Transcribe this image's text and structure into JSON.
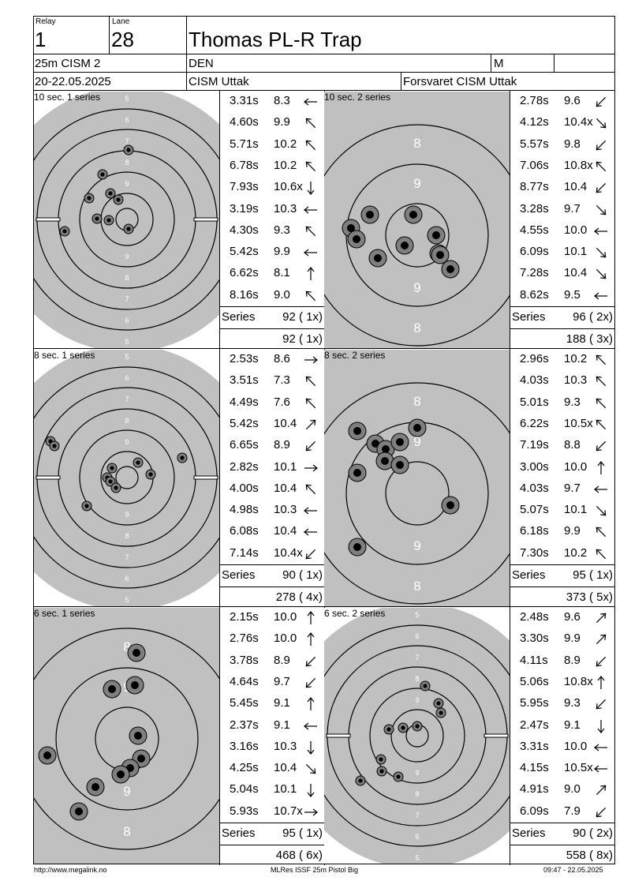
{
  "header": {
    "relay_label": "Relay",
    "relay": "1",
    "lane_label": "Lane",
    "lane": "28",
    "name": "Thomas PL-R Trap",
    "competition": "25m CISM 2",
    "nation": "DEN",
    "gender": "M",
    "dates": "20-22.05.2025",
    "event_location": "CISM Uttak",
    "organizer": "Forsvaret CISM Uttak"
  },
  "series_label": "Series",
  "panels": [
    {
      "label": "10 sec. 1 series",
      "zoom": false,
      "shots": [
        {
          "time": "3.31s",
          "score": "8.3",
          "dir": "W"
        },
        {
          "time": "4.60s",
          "score": "9.9",
          "dir": "NW"
        },
        {
          "time": "5.71s",
          "score": "10.2",
          "dir": "NW"
        },
        {
          "time": "6.78s",
          "score": "10.2",
          "dir": "NW"
        },
        {
          "time": "7.93s",
          "score": "10.6x",
          "dir": "S"
        },
        {
          "time": "3.19s",
          "score": "10.3",
          "dir": "W"
        },
        {
          "time": "4.30s",
          "score": "9.3",
          "dir": "NW"
        },
        {
          "time": "5.42s",
          "score": "9.9",
          "dir": "W"
        },
        {
          "time": "6.62s",
          "score": "8.1",
          "dir": "N"
        },
        {
          "time": "8.16s",
          "score": "9.0",
          "dir": "NW"
        }
      ],
      "series_total": "92 ( 1x)",
      "running_total": "92 ( 1x)"
    },
    {
      "label": "10 sec. 2 series",
      "zoom": true,
      "shots": [
        {
          "time": "2.78s",
          "score": "9.6",
          "dir": "SW"
        },
        {
          "time": "4.12s",
          "score": "10.4x",
          "dir": "SE"
        },
        {
          "time": "5.57s",
          "score": "9.8",
          "dir": "SW"
        },
        {
          "time": "7.06s",
          "score": "10.8x",
          "dir": "NW"
        },
        {
          "time": "8.77s",
          "score": "10.4",
          "dir": "SW"
        },
        {
          "time": "3.28s",
          "score": "9.7",
          "dir": "SE"
        },
        {
          "time": "4.55s",
          "score": "10.0",
          "dir": "W"
        },
        {
          "time": "6.09s",
          "score": "10.1",
          "dir": "SE"
        },
        {
          "time": "7.28s",
          "score": "10.4",
          "dir": "SE"
        },
        {
          "time": "8.62s",
          "score": "9.5",
          "dir": "W"
        }
      ],
      "series_total": "96 ( 2x)",
      "running_total": "188 ( 3x)"
    },
    {
      "label": "8 sec. 1 series",
      "zoom": false,
      "shots": [
        {
          "time": "2.53s",
          "score": "8.6",
          "dir": "E"
        },
        {
          "time": "3.51s",
          "score": "7.3",
          "dir": "NW"
        },
        {
          "time": "4.49s",
          "score": "7.6",
          "dir": "NW"
        },
        {
          "time": "5.42s",
          "score": "10.4",
          "dir": "NE"
        },
        {
          "time": "6.65s",
          "score": "8.9",
          "dir": "SW"
        },
        {
          "time": "2.82s",
          "score": "10.1",
          "dir": "E"
        },
        {
          "time": "4.00s",
          "score": "10.4",
          "dir": "NW"
        },
        {
          "time": "4.98s",
          "score": "10.3",
          "dir": "W"
        },
        {
          "time": "6.08s",
          "score": "10.4",
          "dir": "W"
        },
        {
          "time": "7.14s",
          "score": "10.4x",
          "dir": "SW"
        }
      ],
      "series_total": "90 ( 1x)",
      "running_total": "278 ( 4x)"
    },
    {
      "label": "8 sec. 2 series",
      "zoom": true,
      "shots": [
        {
          "time": "2.96s",
          "score": "10.2",
          "dir": "NW"
        },
        {
          "time": "4.03s",
          "score": "10.3",
          "dir": "NW"
        },
        {
          "time": "5.01s",
          "score": "9.3",
          "dir": "NW"
        },
        {
          "time": "6.22s",
          "score": "10.5x",
          "dir": "NW"
        },
        {
          "time": "7.19s",
          "score": "8.8",
          "dir": "SW"
        },
        {
          "time": "3.00s",
          "score": "10.0",
          "dir": "N"
        },
        {
          "time": "4.03s",
          "score": "9.7",
          "dir": "W"
        },
        {
          "time": "5.07s",
          "score": "10.1",
          "dir": "SE"
        },
        {
          "time": "6.18s",
          "score": "9.9",
          "dir": "NW"
        },
        {
          "time": "7.30s",
          "score": "10.2",
          "dir": "NW"
        }
      ],
      "series_total": "95 ( 1x)",
      "running_total": "373 ( 5x)"
    },
    {
      "label": "6 sec. 1 series",
      "zoom": true,
      "shots": [
        {
          "time": "2.15s",
          "score": "10.0",
          "dir": "N"
        },
        {
          "time": "2.76s",
          "score": "10.0",
          "dir": "N"
        },
        {
          "time": "3.78s",
          "score": "8.9",
          "dir": "SW"
        },
        {
          "time": "4.64s",
          "score": "9.7",
          "dir": "SW"
        },
        {
          "time": "5.45s",
          "score": "9.1",
          "dir": "N"
        },
        {
          "time": "2.37s",
          "score": "9.1",
          "dir": "W"
        },
        {
          "time": "3.16s",
          "score": "10.3",
          "dir": "S"
        },
        {
          "time": "4.25s",
          "score": "10.4",
          "dir": "SE"
        },
        {
          "time": "5.04s",
          "score": "10.1",
          "dir": "S"
        },
        {
          "time": "5.93s",
          "score": "10.7x",
          "dir": "E"
        }
      ],
      "series_total": "95 ( 1x)",
      "running_total": "468 ( 6x)"
    },
    {
      "label": "6 sec. 2 series",
      "zoom": false,
      "shots": [
        {
          "time": "2.48s",
          "score": "9.6",
          "dir": "NE"
        },
        {
          "time": "3.30s",
          "score": "9.9",
          "dir": "NE"
        },
        {
          "time": "4.11s",
          "score": "8.9",
          "dir": "SW"
        },
        {
          "time": "5.06s",
          "score": "10.8x",
          "dir": "N"
        },
        {
          "time": "5.95s",
          "score": "9.3",
          "dir": "SW"
        },
        {
          "time": "2.47s",
          "score": "9.1",
          "dir": "S"
        },
        {
          "time": "3.31s",
          "score": "10.0",
          "dir": "W"
        },
        {
          "time": "4.15s",
          "score": "10.5x",
          "dir": "W"
        },
        {
          "time": "4.91s",
          "score": "9.0",
          "dir": "NE"
        },
        {
          "time": "6.09s",
          "score": "7.9",
          "dir": "SW"
        }
      ],
      "series_total": "90 ( 2x)",
      "running_total": "558 ( 8x)"
    }
  ],
  "footer": {
    "left": "http://www.megalink.no",
    "center": "MLRes ISSF 25m Pistol Big",
    "right": "09:47 - 22.05.2025"
  },
  "target_ring_numbers_full": [
    "5",
    "6",
    "7",
    "8",
    "9"
  ],
  "target_ring_numbers_zoom": [
    "8",
    "9"
  ],
  "colors": {
    "target_fill": "#c0c0c0",
    "hole_outer": "#7f7f7f",
    "hole_inner": "#000000",
    "line": "#000000"
  }
}
